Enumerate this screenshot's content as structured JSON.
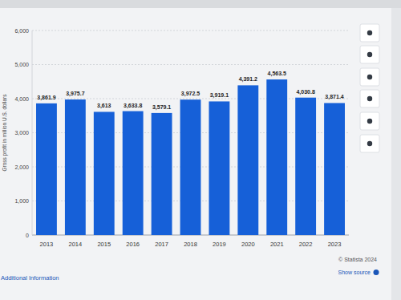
{
  "chart_data": {
    "type": "bar",
    "y_label": "Gross profit in million U.S. dollars",
    "categories": [
      "2013",
      "2014",
      "2015",
      "2016",
      "2017",
      "2018",
      "2019",
      "2020",
      "2021",
      "2022",
      "2023"
    ],
    "values": [
      3861.9,
      3975.7,
      3613,
      3633.8,
      3579.1,
      3972.5,
      3919.1,
      4391.2,
      4563.5,
      4030.8,
      3871.4
    ],
    "value_labels": [
      "3,861.9",
      "3,975.7",
      "3,613",
      "3,633.8",
      "3,579.1",
      "3,972.5",
      "3,919.1",
      "4,391.2",
      "4,563.5",
      "4,030.8",
      "3,871.4"
    ],
    "color": "#1660d8",
    "ylim": [
      0,
      6000
    ],
    "yticks": [
      0,
      {
        "value": 1000,
        "label": "1,000"
      },
      {
        "value": 2000,
        "label": "2,000"
      },
      {
        "value": 3000,
        "label": "3,000"
      },
      {
        "value": 4000,
        "label": "4,000"
      },
      {
        "value": 5000,
        "label": "5,000"
      },
      {
        "value": 6000,
        "label": "6,000"
      }
    ],
    "grid": true,
    "data_labels": true,
    "annotations": [
      "© Statista 2024",
      "Show source",
      "Additional Information"
    ]
  }
}
